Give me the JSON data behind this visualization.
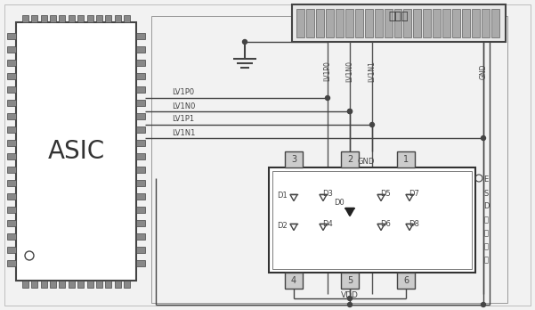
{
  "bg_color": "#f2f2f2",
  "line_color": "#444444",
  "dark_line": "#222222",
  "connector_label": "连接器",
  "asic_label": "ASIC",
  "esd_label": [
    "E",
    "S",
    "D",
    "保",
    "护",
    "芯",
    "片"
  ],
  "gnd_label": "GND",
  "vdd_label": "VDD",
  "signal_labels": [
    "LV1P0",
    "LV1N0",
    "LV1P1",
    "LV1N1"
  ],
  "conn_pin_labels": [
    "LV1P0",
    "LV1N0",
    "LV1N1",
    "GND"
  ],
  "diode_labels_left": [
    "D1",
    "D2"
  ],
  "diode_labels_mid_left": [
    "D3",
    "D4"
  ],
  "diode_label_center": "D0",
  "diode_labels_mid_right": [
    "D5",
    "D6"
  ],
  "diode_labels_right": [
    "D7",
    "D8"
  ],
  "pin_labels_top": [
    "3",
    "2",
    "1"
  ],
  "pin_labels_bottom": [
    "4",
    "5",
    "6"
  ]
}
